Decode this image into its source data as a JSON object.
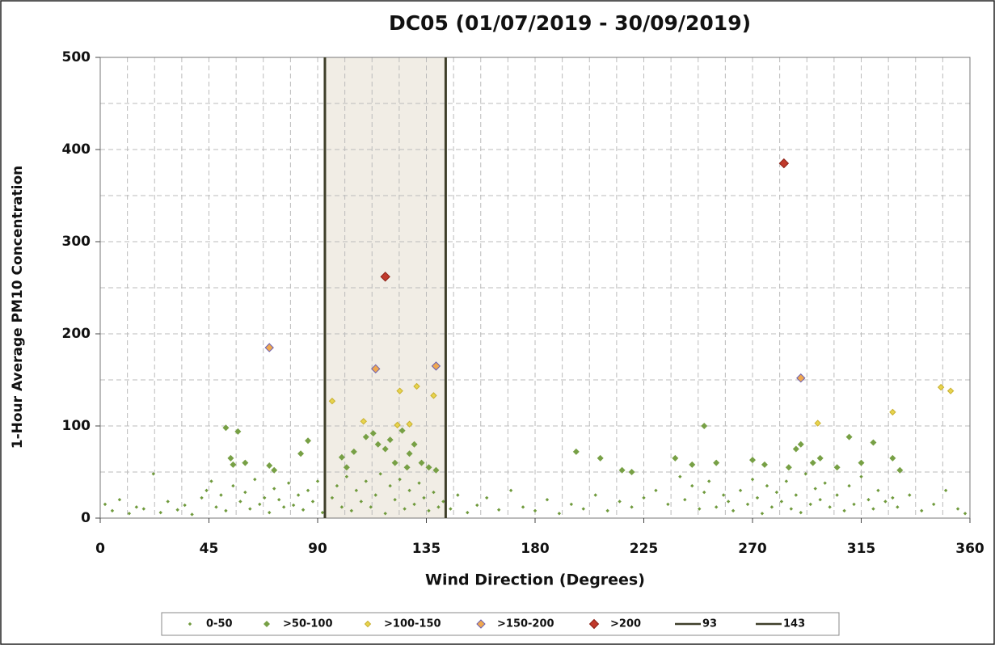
{
  "chart_data": {
    "type": "scatter",
    "title": "DC05 (01/07/2019 - 30/09/2019)",
    "x_label": "Wind Direction (Degrees)",
    "y_label": "1-Hour Average PM10 Concentration",
    "xlim": [
      0,
      360
    ],
    "ylim": [
      0,
      500
    ],
    "xticks": [
      0,
      45,
      90,
      135,
      180,
      225,
      270,
      315,
      360
    ],
    "yticks": [
      0,
      100,
      200,
      300,
      400,
      500
    ],
    "xgrid": [
      11.25,
      22.5,
      33.75,
      45,
      56.25,
      67.5,
      78.75,
      90,
      101.25,
      112.5,
      123.75,
      135,
      146.25,
      157.5,
      168.75,
      180,
      191.25,
      202.5,
      213.75,
      225,
      236.25,
      247.5,
      258.75,
      270,
      281.25,
      292.5,
      303.75,
      315,
      326.25,
      337.5,
      348.75
    ],
    "ygrid": [
      50,
      100,
      150,
      200,
      250,
      300,
      350,
      400,
      450
    ],
    "grid": true,
    "legend": "bottom",
    "series": [
      {
        "name": "0-50",
        "color": "#6f9a3c",
        "marker": "small",
        "x": [
          2,
          5,
          8,
          12,
          15,
          18,
          22,
          25,
          28,
          32,
          35,
          38,
          42,
          44,
          46,
          48,
          50,
          52,
          55,
          58,
          60,
          62,
          64,
          66,
          68,
          70,
          72,
          74,
          76,
          78,
          80,
          82,
          84,
          86,
          88,
          90,
          92,
          96,
          98,
          100,
          102,
          104,
          106,
          108,
          110,
          112,
          114,
          116,
          118,
          120,
          122,
          124,
          126,
          128,
          130,
          132,
          134,
          136,
          138,
          140,
          142,
          145,
          148,
          152,
          156,
          160,
          165,
          170,
          175,
          180,
          185,
          190,
          195,
          200,
          205,
          210,
          215,
          220,
          225,
          230,
          235,
          240,
          242,
          245,
          248,
          250,
          252,
          255,
          258,
          260,
          262,
          265,
          268,
          270,
          272,
          274,
          276,
          278,
          280,
          282,
          284,
          286,
          288,
          290,
          292,
          294,
          296,
          298,
          300,
          302,
          305,
          308,
          310,
          312,
          315,
          318,
          320,
          322,
          325,
          328,
          330,
          335,
          340,
          345,
          350,
          355,
          358
        ],
        "values": [
          15,
          8,
          20,
          5,
          12,
          10,
          48,
          6,
          18,
          9,
          14,
          4,
          22,
          30,
          40,
          12,
          25,
          8,
          35,
          18,
          28,
          10,
          42,
          15,
          22,
          6,
          32,
          20,
          12,
          38,
          14,
          25,
          9,
          30,
          18,
          40,
          6,
          22,
          35,
          12,
          45,
          8,
          30,
          18,
          40,
          12,
          25,
          48,
          5,
          35,
          20,
          42,
          10,
          30,
          15,
          38,
          22,
          8,
          28,
          12,
          18,
          10,
          25,
          6,
          14,
          22,
          9,
          30,
          12,
          8,
          20,
          5,
          15,
          10,
          25,
          8,
          18,
          12,
          22,
          30,
          15,
          45,
          20,
          35,
          10,
          28,
          40,
          12,
          25,
          18,
          8,
          30,
          15,
          42,
          22,
          5,
          35,
          12,
          28,
          18,
          40,
          10,
          25,
          6,
          48,
          15,
          32,
          20,
          38,
          12,
          25,
          8,
          35,
          15,
          45,
          20,
          10,
          30,
          18,
          22,
          12,
          25,
          8,
          15,
          30,
          10,
          5
        ]
      },
      {
        "name": ">50-100",
        "color": "#77a045",
        "marker": "diamond",
        "x": [
          52,
          57,
          54,
          55,
          60,
          70,
          72,
          86,
          83,
          100,
          105,
          110,
          113,
          115,
          118,
          120,
          122,
          125,
          128,
          130,
          133,
          136,
          139,
          197,
          207,
          216,
          220,
          238,
          245,
          250,
          255,
          270,
          275,
          285,
          288,
          290,
          295,
          298,
          305,
          310,
          315,
          320,
          328,
          331,
          102,
          127
        ],
        "values": [
          98,
          94,
          65,
          58,
          60,
          57,
          52,
          84,
          70,
          66,
          72,
          88,
          92,
          80,
          75,
          85,
          60,
          95,
          70,
          80,
          60,
          55,
          52,
          72,
          65,
          52,
          50,
          65,
          58,
          100,
          60,
          63,
          58,
          55,
          75,
          80,
          60,
          65,
          55,
          88,
          60,
          82,
          65,
          52,
          55,
          55
        ]
      },
      {
        "name": ">100-150",
        "color": "#e8d44d",
        "marker": "diamond-s",
        "x": [
          96,
          109,
          124,
          123,
          128,
          131,
          138,
          297,
          328,
          348,
          352
        ],
        "values": [
          127,
          105,
          138,
          101,
          102,
          143,
          133,
          103,
          115,
          142,
          138
        ]
      },
      {
        "name": ">150-200",
        "color": "#f0a850",
        "marker": "diamond-p",
        "x": [
          70,
          114,
          139,
          290
        ],
        "values": [
          185,
          162,
          165,
          152
        ]
      },
      {
        "name": ">200",
        "color": "#c0392b",
        "marker": "diamond-l",
        "x": [
          118,
          283
        ],
        "values": [
          262,
          385
        ]
      },
      {
        "name": "93",
        "color": "#3f3f2a",
        "marker": "line",
        "x": [
          93,
          93
        ],
        "values": [
          0,
          500
        ]
      },
      {
        "name": "143",
        "color": "#3f3f2a",
        "marker": "line",
        "x": [
          143,
          143
        ],
        "values": [
          0,
          500
        ]
      }
    ]
  }
}
